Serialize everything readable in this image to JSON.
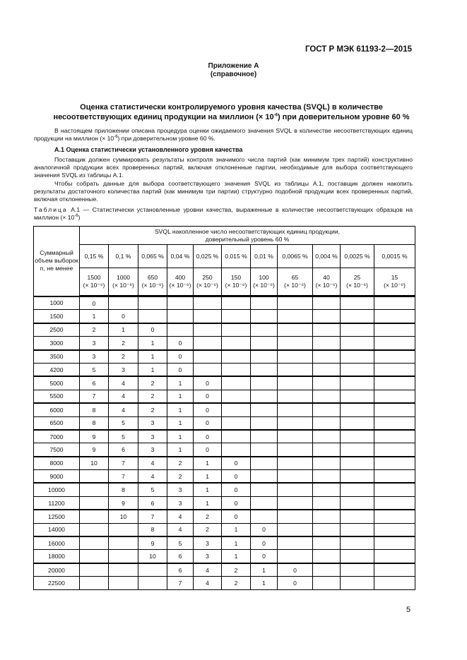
{
  "doc_code": "ГОСТ Р МЭК 61193-2—2015",
  "annex": {
    "title": "Приложение А",
    "subtitle": "(справочное)"
  },
  "title_line1": "Оценка статистически контролируемого уровня качества (SVQL) в количестве",
  "title_line2_a": "несоответствующих единиц продукции на миллион (× 10",
  "title_line2_sup": "-6",
  "title_line2_b": ") при доверительном уровне 60 %",
  "p1_a": "В настоящем приложении описана процедура оценки ожидаемого значения SVQL в количестве несоответствующих единиц продукции на миллион (× 10",
  "p1_sup": "-6",
  "p1_b": ") при доверительном уровне 60 %.",
  "section_heading": "А.1 Оценка статистически установленного уровня качества",
  "p2": "Поставщик должен суммировать результаты контроля значимого числа партий (как минимум трех партий) конструктивно аналогичной продукции всех проверенных партий, включая отклоненные партии, необходимые для выбора соответствующего значения SVQL из таблицы А.1.",
  "p3": "Чтобы собрать данные для выбора соответствующего значения SVQL из таблицы А.1, поставщик должен накопить результаты достаточного количества партий (как минимум три партии) структурно подобной продукции всех проверенных партий, включая отклоненные.",
  "caption_label": "Таблица",
  "caption_a": " А.1 — Статистически установленные уровни качества, выраженные в количестве несоответствующих образцов на миллион (× 10",
  "caption_sup": "-6",
  "caption_b": ")",
  "table": {
    "row_header": "Суммарный объем выборок n, не менее",
    "group_header_line1": "SVQL накопленное число несоответствующих единиц продукции,",
    "group_header_line2": "доверительный уровень 60 %",
    "percent_headers": [
      "0,15 %",
      "0,1 %",
      "0,065 %",
      "0,04 %",
      "0,025 %",
      "0,015 %",
      "0,01 %",
      "0,0065 %",
      "0,004 %",
      "0,0025 %",
      "0,0015 %"
    ],
    "ppm_values": [
      "1500",
      "1000",
      "650",
      "400",
      "250",
      "150",
      "100",
      "65",
      "40",
      "25",
      "15"
    ],
    "ppm_unit": "(× 10⁻⁶)",
    "rows": [
      [
        "1000",
        "0",
        "",
        "",
        "",
        "",
        "",
        "",
        "",
        "",
        "",
        ""
      ],
      [
        "1500",
        "1",
        "0",
        "",
        "",
        "",
        "",
        "",
        "",
        "",
        "",
        ""
      ],
      [
        "2500",
        "2",
        "1",
        "0",
        "",
        "",
        "",
        "",
        "",
        "",
        "",
        ""
      ],
      [
        "3000",
        "3",
        "2",
        "1",
        "0",
        "",
        "",
        "",
        "",
        "",
        "",
        ""
      ],
      [
        "3500",
        "3",
        "2",
        "1",
        "0",
        "",
        "",
        "",
        "",
        "",
        "",
        ""
      ],
      [
        "4200",
        "5",
        "3",
        "1",
        "0",
        "",
        "",
        "",
        "",
        "",
        "",
        ""
      ],
      [
        "5000",
        "6",
        "4",
        "2",
        "1",
        "0",
        "",
        "",
        "",
        "",
        "",
        ""
      ],
      [
        "5500",
        "7",
        "4",
        "2",
        "1",
        "0",
        "",
        "",
        "",
        "",
        "",
        ""
      ],
      [
        "6000",
        "8",
        "4",
        "2",
        "1",
        "0",
        "",
        "",
        "",
        "",
        "",
        ""
      ],
      [
        "6500",
        "8",
        "5",
        "3",
        "1",
        "0",
        "",
        "",
        "",
        "",
        "",
        ""
      ],
      [
        "7000",
        "9",
        "5",
        "3",
        "1",
        "0",
        "",
        "",
        "",
        "",
        "",
        ""
      ],
      [
        "7500",
        "9",
        "6",
        "3",
        "1",
        "0",
        "",
        "",
        "",
        "",
        "",
        ""
      ],
      [
        "8000",
        "10",
        "7",
        "4",
        "2",
        "1",
        "0",
        "",
        "",
        "",
        "",
        ""
      ],
      [
        "9000",
        "",
        "7",
        "4",
        "2",
        "1",
        "0",
        "",
        "",
        "",
        "",
        ""
      ],
      [
        "10000",
        "",
        "8",
        "5",
        "3",
        "1",
        "0",
        "",
        "",
        "",
        "",
        ""
      ],
      [
        "11200",
        "",
        "9",
        "6",
        "3",
        "1",
        "0",
        "",
        "",
        "",
        "",
        ""
      ],
      [
        "12500",
        "",
        "10",
        "7",
        "4",
        "2",
        "0",
        "",
        "",
        "",
        "",
        ""
      ],
      [
        "14000",
        "",
        "",
        "8",
        "4",
        "2",
        "1",
        "0",
        "",
        "",
        "",
        ""
      ],
      [
        "16000",
        "",
        "",
        "9",
        "5",
        "3",
        "1",
        "0",
        "",
        "",
        "",
        ""
      ],
      [
        "18000",
        "",
        "",
        "10",
        "6",
        "3",
        "1",
        "0",
        "",
        "",
        "",
        ""
      ],
      [
        "20000",
        "",
        "",
        "",
        "6",
        "4",
        "2",
        "1",
        "0",
        "",
        "",
        ""
      ],
      [
        "22500",
        "",
        "",
        "",
        "7",
        "4",
        "2",
        "1",
        "0",
        "",
        "",
        ""
      ]
    ]
  },
  "page_number": "5"
}
